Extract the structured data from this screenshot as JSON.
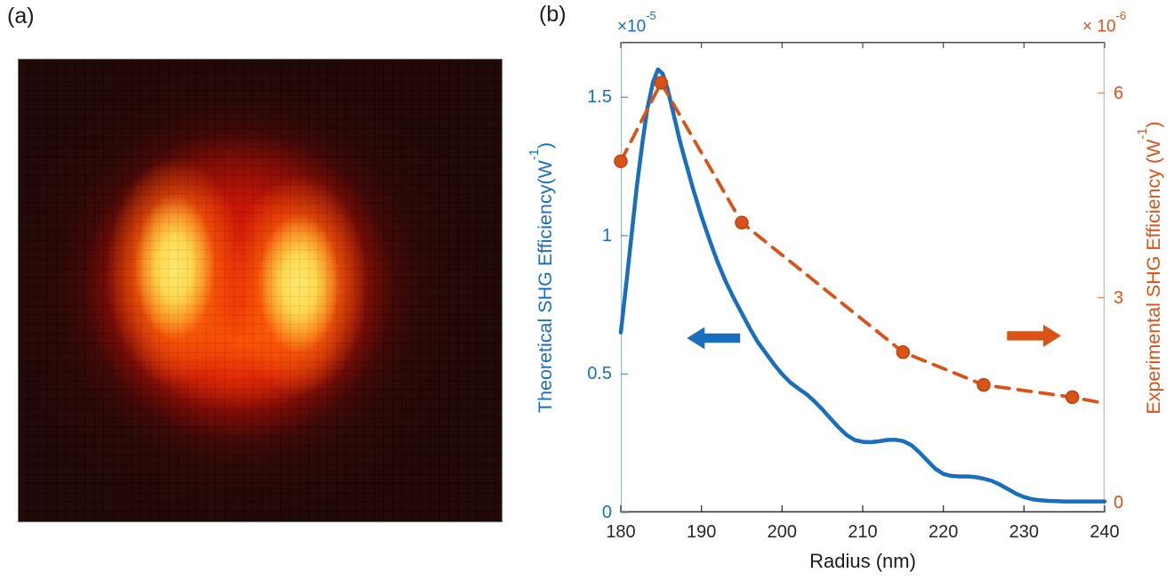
{
  "figure": {
    "panel_a_label": "(a)",
    "panel_b_label": "(b)"
  },
  "panel_a": {
    "type": "intensity-image",
    "content": "two-lobe SHG emission intensity pattern on dark background",
    "colors": {
      "background": "#1c0200",
      "glow_red": "#d81300",
      "lobe_core_yellow": "#ffe76a",
      "mid_orange": "#ff8c00"
    }
  },
  "chart_data": {
    "type": "line",
    "title": "",
    "xlabel": "Radius (nm)",
    "x_range": [
      180,
      240
    ],
    "x_ticks": [
      "180",
      "190",
      "200",
      "210",
      "220",
      "230",
      "240"
    ],
    "grid": false,
    "legend": null,
    "left_axis": {
      "exponent_pre": "×10",
      "exponent_sup": "-5",
      "label_pre": "Theoretical SHG Efficiency(W",
      "label_sup": "-1",
      "label_post": ")",
      "ticks": [
        "0",
        "0.5",
        "1",
        "1.5"
      ],
      "tick_values": [
        0,
        0.5,
        1,
        1.5
      ],
      "range": [
        0,
        1.7
      ],
      "color": "#1a6fbd",
      "spine_color": "#9db7cd",
      "tick_color": "#5c8fc4"
    },
    "right_axis": {
      "exponent_pre": "× 10",
      "exponent_sup": "-6",
      "label_pre": "Experimental SHG Efficiency (W",
      "label_sup": "-1",
      "label_post": ")",
      "ticks": [
        "0",
        "3",
        "6"
      ],
      "tick_values": [
        0,
        3,
        6
      ],
      "range": [
        -0.15,
        6.75
      ],
      "color": "#d95319",
      "spine_color": "#e2b39a",
      "tick_color": "#da8a5e"
    },
    "series": [
      {
        "name": "Theoretical SHG Efficiency",
        "axis": "left",
        "style": "solid",
        "line_width": 4.5,
        "color": "#1a6fbd",
        "marker": null,
        "points": [
          [
            180,
            0.65
          ],
          [
            180.7,
            0.83
          ],
          [
            181.4,
            1.02
          ],
          [
            182,
            1.18
          ],
          [
            182.7,
            1.34
          ],
          [
            183.3,
            1.46
          ],
          [
            184,
            1.555
          ],
          [
            184.6,
            1.6
          ],
          [
            185.2,
            1.585
          ],
          [
            185.8,
            1.53
          ],
          [
            186.5,
            1.445
          ],
          [
            187.3,
            1.345
          ],
          [
            188,
            1.27
          ],
          [
            189,
            1.165
          ],
          [
            190,
            1.07
          ],
          [
            191,
            0.985
          ],
          [
            192,
            0.905
          ],
          [
            193,
            0.835
          ],
          [
            194,
            0.775
          ],
          [
            195,
            0.72
          ],
          [
            196,
            0.665
          ],
          [
            197,
            0.615
          ],
          [
            198,
            0.575
          ],
          [
            199,
            0.535
          ],
          [
            200,
            0.5
          ],
          [
            201,
            0.47
          ],
          [
            202,
            0.448
          ],
          [
            203,
            0.428
          ],
          [
            204,
            0.402
          ],
          [
            205,
            0.372
          ],
          [
            206,
            0.34
          ],
          [
            207,
            0.308
          ],
          [
            208,
            0.28
          ],
          [
            209,
            0.262
          ],
          [
            210,
            0.255
          ],
          [
            211,
            0.254
          ],
          [
            212,
            0.257
          ],
          [
            213,
            0.262
          ],
          [
            214,
            0.263
          ],
          [
            215,
            0.258
          ],
          [
            216,
            0.244
          ],
          [
            217,
            0.218
          ],
          [
            218,
            0.188
          ],
          [
            219,
            0.158
          ],
          [
            220,
            0.139
          ],
          [
            221,
            0.132
          ],
          [
            222,
            0.13
          ],
          [
            223,
            0.13
          ],
          [
            224,
            0.128
          ],
          [
            225,
            0.122
          ],
          [
            226,
            0.114
          ],
          [
            227,
            0.101
          ],
          [
            228,
            0.085
          ],
          [
            229,
            0.068
          ],
          [
            230,
            0.056
          ],
          [
            231,
            0.048
          ],
          [
            232,
            0.044
          ],
          [
            233,
            0.042
          ],
          [
            234,
            0.041
          ],
          [
            235,
            0.04
          ],
          [
            236,
            0.04
          ],
          [
            237,
            0.04
          ],
          [
            238,
            0.04
          ],
          [
            239,
            0.04
          ],
          [
            240,
            0.04
          ]
        ]
      },
      {
        "name": "Experimental SHG Efficiency",
        "axis": "right",
        "style": "dashed",
        "line_width": 3.8,
        "color": "#d95319",
        "marker": "circle",
        "marker_radius": 7,
        "marker_edge_color": "#b8440f",
        "marker_count": 6,
        "points": [
          [
            180,
            5.0
          ],
          [
            185,
            6.15
          ],
          [
            195,
            4.1
          ],
          [
            215,
            2.2
          ],
          [
            225,
            1.72
          ],
          [
            236,
            1.54
          ],
          [
            240,
            1.45
          ]
        ]
      }
    ],
    "annotations": [
      {
        "type": "arrow",
        "direction": "left",
        "axis": "left",
        "color": "#1a6fbd",
        "x_tip": 188.2,
        "x_tail": 194.8,
        "y_value": 0.63
      },
      {
        "type": "arrow",
        "direction": "right",
        "axis": "right",
        "color": "#d95319",
        "x_tip": 234.6,
        "x_tail": 227.9,
        "y_value": 2.44
      }
    ]
  }
}
